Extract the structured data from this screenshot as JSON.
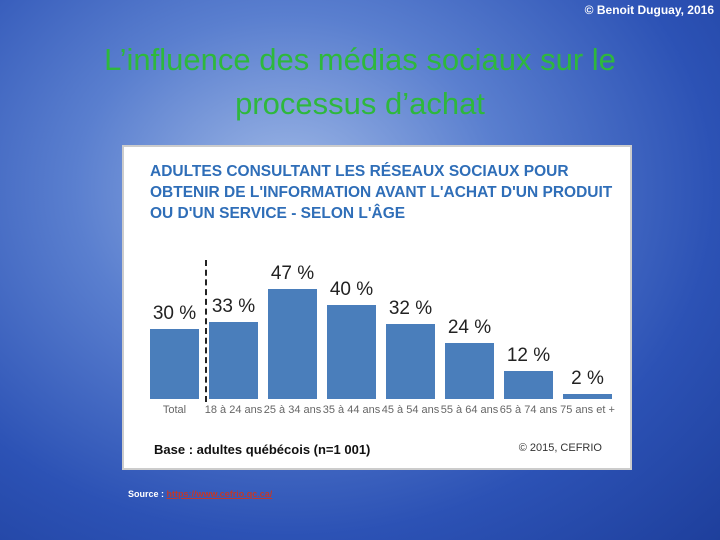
{
  "copyright": "© Benoit Duguay, 2016",
  "title": "L’influence des médias sociaux sur le processus d’achat",
  "chart_data": {
    "type": "bar",
    "title": "ADULTES CONSULTANT LES RÉSEAUX SOCIAUX POUR OBTENIR DE L'INFORMATION AVANT L'ACHAT D'UN PRODUIT OU D'UN SERVICE - SELON L'ÂGE",
    "categories": [
      "Total",
      "18 à 24 ans",
      "25 à 34 ans",
      "35 à 44 ans",
      "45 à 54 ans",
      "55 à 64 ans",
      "65 à 74 ans",
      "75 ans et +"
    ],
    "values": [
      30,
      33,
      47,
      40,
      32,
      24,
      12,
      2
    ],
    "value_labels": [
      "30 %",
      "33 %",
      "47 %",
      "40 %",
      "32 %",
      "24 %",
      "12 %",
      "2 %"
    ],
    "color": "#4a7ebb",
    "note": "Base : adultes québécois (n=1 001)",
    "credit": "© 2015, CEFRIO"
  },
  "source": {
    "label": "Source :",
    "url": "https://www.cefrio.qc.ca/"
  }
}
